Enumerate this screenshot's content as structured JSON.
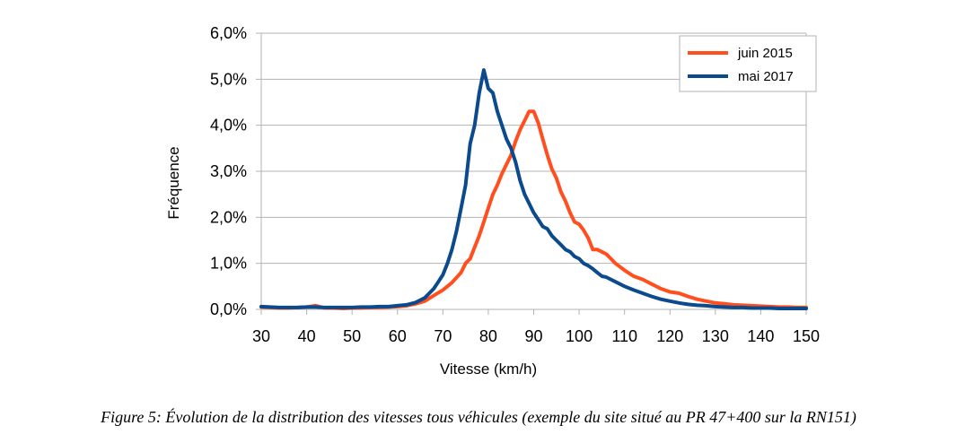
{
  "caption": "Figure 5: Évolution de la distribution des vitesses tous véhicules (exemple du site situé au PR 47+400 sur la RN151)",
  "chart_data": {
    "type": "line",
    "xlabel": "Vitesse (km/h)",
    "ylabel": "Fréquence",
    "xlim": [
      30,
      150
    ],
    "ylim": [
      0,
      6
    ],
    "x_ticks": [
      "30",
      "40",
      "50",
      "60",
      "70",
      "80",
      "90",
      "100",
      "110",
      "120",
      "130",
      "140",
      "150"
    ],
    "y_ticks": [
      "0,0%",
      "1,0%",
      "2,0%",
      "3,0%",
      "4,0%",
      "5,0%",
      "6,0%"
    ],
    "grid": "horizontal",
    "legend_position": "top-right",
    "series": [
      {
        "name": "juin 2015",
        "color": "#ff4f1f",
        "points": [
          [
            30,
            0.05
          ],
          [
            32,
            0.04
          ],
          [
            34,
            0.03
          ],
          [
            36,
            0.03
          ],
          [
            38,
            0.04
          ],
          [
            40,
            0.05
          ],
          [
            42,
            0.08
          ],
          [
            44,
            0.03
          ],
          [
            46,
            0.03
          ],
          [
            48,
            0.02
          ],
          [
            50,
            0.03
          ],
          [
            52,
            0.03
          ],
          [
            54,
            0.04
          ],
          [
            56,
            0.04
          ],
          [
            58,
            0.05
          ],
          [
            60,
            0.06
          ],
          [
            62,
            0.08
          ],
          [
            64,
            0.12
          ],
          [
            66,
            0.18
          ],
          [
            68,
            0.3
          ],
          [
            70,
            0.42
          ],
          [
            72,
            0.58
          ],
          [
            74,
            0.8
          ],
          [
            75,
            1.0
          ],
          [
            76,
            1.1
          ],
          [
            77,
            1.35
          ],
          [
            78,
            1.6
          ],
          [
            79,
            1.9
          ],
          [
            80,
            2.2
          ],
          [
            81,
            2.5
          ],
          [
            82,
            2.7
          ],
          [
            83,
            2.95
          ],
          [
            84,
            3.15
          ],
          [
            85,
            3.35
          ],
          [
            86,
            3.65
          ],
          [
            87,
            3.9
          ],
          [
            88,
            4.1
          ],
          [
            89,
            4.3
          ],
          [
            90,
            4.3
          ],
          [
            91,
            4.05
          ],
          [
            92,
            3.7
          ],
          [
            93,
            3.35
          ],
          [
            94,
            3.05
          ],
          [
            95,
            2.85
          ],
          [
            96,
            2.55
          ],
          [
            97,
            2.35
          ],
          [
            98,
            2.1
          ],
          [
            99,
            1.9
          ],
          [
            100,
            1.85
          ],
          [
            101,
            1.72
          ],
          [
            102,
            1.55
          ],
          [
            103,
            1.3
          ],
          [
            104,
            1.3
          ],
          [
            105,
            1.25
          ],
          [
            106,
            1.2
          ],
          [
            107,
            1.1
          ],
          [
            108,
            1.0
          ],
          [
            110,
            0.85
          ],
          [
            112,
            0.72
          ],
          [
            114,
            0.65
          ],
          [
            116,
            0.55
          ],
          [
            118,
            0.45
          ],
          [
            120,
            0.38
          ],
          [
            122,
            0.35
          ],
          [
            124,
            0.28
          ],
          [
            126,
            0.22
          ],
          [
            128,
            0.18
          ],
          [
            130,
            0.14
          ],
          [
            132,
            0.12
          ],
          [
            134,
            0.1
          ],
          [
            136,
            0.09
          ],
          [
            138,
            0.08
          ],
          [
            140,
            0.07
          ],
          [
            142,
            0.06
          ],
          [
            144,
            0.05
          ],
          [
            146,
            0.05
          ],
          [
            148,
            0.04
          ],
          [
            150,
            0.04
          ]
        ]
      },
      {
        "name": "mai 2017",
        "color": "#0b4a8c",
        "points": [
          [
            30,
            0.06
          ],
          [
            32,
            0.05
          ],
          [
            34,
            0.04
          ],
          [
            36,
            0.04
          ],
          [
            38,
            0.04
          ],
          [
            40,
            0.05
          ],
          [
            42,
            0.05
          ],
          [
            44,
            0.04
          ],
          [
            46,
            0.04
          ],
          [
            48,
            0.04
          ],
          [
            50,
            0.04
          ],
          [
            52,
            0.05
          ],
          [
            54,
            0.05
          ],
          [
            56,
            0.06
          ],
          [
            58,
            0.06
          ],
          [
            60,
            0.08
          ],
          [
            62,
            0.1
          ],
          [
            64,
            0.15
          ],
          [
            66,
            0.25
          ],
          [
            67,
            0.35
          ],
          [
            68,
            0.45
          ],
          [
            69,
            0.6
          ],
          [
            70,
            0.75
          ],
          [
            71,
            1.0
          ],
          [
            72,
            1.3
          ],
          [
            73,
            1.7
          ],
          [
            74,
            2.2
          ],
          [
            75,
            2.7
          ],
          [
            76,
            3.6
          ],
          [
            77,
            4.0
          ],
          [
            78,
            4.7
          ],
          [
            79,
            5.2
          ],
          [
            80,
            4.8
          ],
          [
            81,
            4.7
          ],
          [
            82,
            4.3
          ],
          [
            83,
            4.0
          ],
          [
            84,
            3.7
          ],
          [
            85,
            3.5
          ],
          [
            86,
            3.2
          ],
          [
            87,
            2.8
          ],
          [
            88,
            2.5
          ],
          [
            89,
            2.3
          ],
          [
            90,
            2.1
          ],
          [
            91,
            1.95
          ],
          [
            92,
            1.8
          ],
          [
            93,
            1.75
          ],
          [
            94,
            1.6
          ],
          [
            95,
            1.5
          ],
          [
            96,
            1.4
          ],
          [
            97,
            1.3
          ],
          [
            98,
            1.25
          ],
          [
            99,
            1.15
          ],
          [
            100,
            1.1
          ],
          [
            101,
            1.0
          ],
          [
            102,
            0.95
          ],
          [
            103,
            0.88
          ],
          [
            104,
            0.8
          ],
          [
            105,
            0.72
          ],
          [
            106,
            0.7
          ],
          [
            108,
            0.6
          ],
          [
            110,
            0.5
          ],
          [
            112,
            0.42
          ],
          [
            114,
            0.35
          ],
          [
            116,
            0.28
          ],
          [
            118,
            0.22
          ],
          [
            120,
            0.18
          ],
          [
            122,
            0.14
          ],
          [
            124,
            0.11
          ],
          [
            126,
            0.09
          ],
          [
            128,
            0.08
          ],
          [
            130,
            0.06
          ],
          [
            132,
            0.05
          ],
          [
            134,
            0.04
          ],
          [
            136,
            0.04
          ],
          [
            138,
            0.03
          ],
          [
            140,
            0.03
          ],
          [
            142,
            0.03
          ],
          [
            144,
            0.02
          ],
          [
            146,
            0.02
          ],
          [
            148,
            0.02
          ],
          [
            150,
            0.02
          ]
        ]
      }
    ]
  }
}
